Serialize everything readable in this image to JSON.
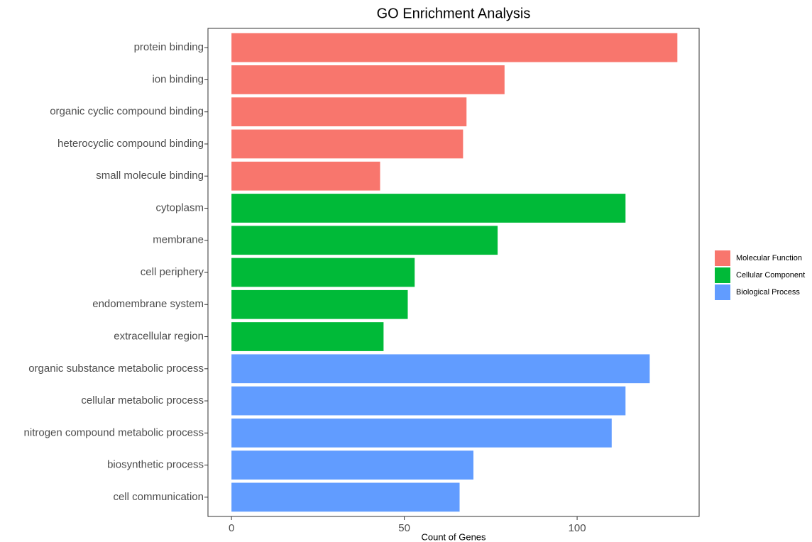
{
  "chart_data": {
    "type": "bar",
    "orientation": "horizontal",
    "title": "GO Enrichment Analysis",
    "xlabel": "Count of Genes",
    "categories": [
      "protein binding",
      "ion binding",
      "organic cyclic compound binding",
      "heterocyclic compound binding",
      "small molecule binding",
      "cytoplasm",
      "membrane",
      "cell periphery",
      "endomembrane system",
      "extracellular region",
      "organic substance metabolic process",
      "cellular metabolic process",
      "nitrogen compound metabolic process",
      "biosynthetic process",
      "cell communication"
    ],
    "series": [
      {
        "name": "Molecular Function",
        "color": "#f8766d",
        "values": [
          129,
          79,
          68,
          67,
          43,
          null,
          null,
          null,
          null,
          null,
          null,
          null,
          null,
          null,
          null
        ]
      },
      {
        "name": "Cellular Component",
        "color": "#00ba38",
        "values": [
          null,
          null,
          null,
          null,
          null,
          114,
          77,
          53,
          51,
          44,
          null,
          null,
          null,
          null,
          null
        ]
      },
      {
        "name": "Biological Process",
        "color": "#619cff",
        "values": [
          null,
          null,
          null,
          null,
          null,
          null,
          null,
          null,
          null,
          null,
          121,
          114,
          110,
          70,
          66
        ]
      }
    ],
    "xlim": [
      -6.8,
      135.3
    ],
    "xticks": [
      0,
      50,
      100
    ],
    "grid": false,
    "legend": "right"
  }
}
